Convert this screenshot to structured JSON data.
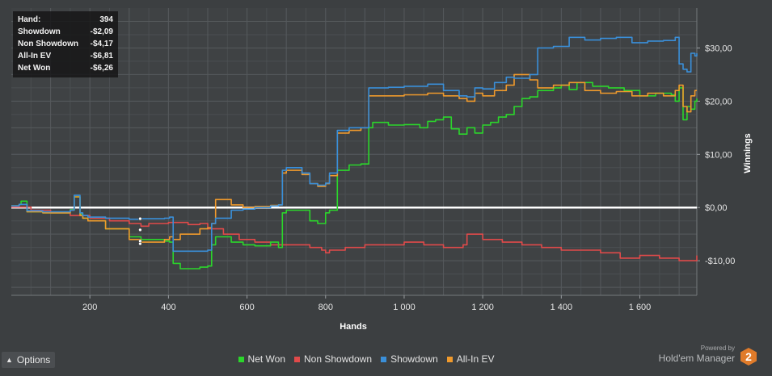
{
  "info": {
    "rows": [
      {
        "label": "Hand:",
        "value": "394"
      },
      {
        "label": "Showdown",
        "value": "-$2,09"
      },
      {
        "label": "Non Showdown",
        "value": "-$4,17"
      },
      {
        "label": "All-In EV",
        "value": "-$6,81"
      },
      {
        "label": "Net Won",
        "value": "-$6,26"
      }
    ]
  },
  "options_label": "Options",
  "powered_by": "Powered by",
  "brand": "Hold'em Manager",
  "brand_logo_text": "2",
  "colors": {
    "background": "#3c3f41",
    "net_won": "#2bd62b",
    "non_showdown": "#e04a4a",
    "showdown": "#3a8fd9",
    "all_in_ev": "#f09a2c",
    "zero_line": "#ffffff",
    "logo": "#e07b2a"
  },
  "chart_data": {
    "type": "line",
    "xlabel": "Hands",
    "ylabel": "Winnings",
    "xlim": [
      0,
      1745
    ],
    "ylim": [
      -16.5,
      37.5
    ],
    "x_ticks": [
      200,
      400,
      600,
      800,
      1000,
      1200,
      1400,
      1600
    ],
    "x_tick_labels": [
      "200",
      "400",
      "600",
      "800",
      "1 000",
      "1 200",
      "1 400",
      "1 600"
    ],
    "y_ticks": [
      -10,
      0,
      10,
      20,
      30
    ],
    "y_tick_labels": [
      "-$10,00",
      "$0,00",
      "$10,00",
      "$20,00",
      "$30,00"
    ],
    "grid": true,
    "legend_position": "bottom",
    "series": [
      {
        "name": "Net Won",
        "color_key": "net_won",
        "x": [
          0,
          20,
          25,
          40,
          80,
          150,
          160,
          175,
          182,
          195,
          240,
          300,
          330,
          390,
          403,
          412,
          430,
          480,
          500,
          510,
          520,
          560,
          590,
          620,
          660,
          680,
          690,
          700,
          760,
          780,
          800,
          810,
          830,
          860,
          890,
          910,
          920,
          960,
          1000,
          1040,
          1060,
          1080,
          1100,
          1120,
          1140,
          1160,
          1180,
          1200,
          1220,
          1240,
          1260,
          1280,
          1300,
          1320,
          1340,
          1380,
          1400,
          1420,
          1440,
          1480,
          1520,
          1560,
          1600,
          1640,
          1680,
          1690,
          1700,
          1710,
          1720,
          1730,
          1740,
          1745
        ],
        "y": [
          0.3,
          0.6,
          1.2,
          -0.8,
          -1.0,
          -0.4,
          2.0,
          -1.2,
          -2.0,
          -2.5,
          -4.0,
          -5.5,
          -6.0,
          -6.3,
          -6.5,
          -10.5,
          -11.5,
          -11.2,
          -11.0,
          -7.0,
          -5.5,
          -6.5,
          -7.0,
          -7.2,
          -6.5,
          -7.5,
          -1.0,
          -0.5,
          -2.5,
          -3.0,
          -1.0,
          -0.5,
          7.0,
          8.0,
          8.2,
          15.0,
          16.0,
          15.5,
          15.6,
          15.0,
          16.2,
          16.5,
          17.0,
          14.8,
          13.8,
          15.0,
          14.0,
          15.5,
          16.0,
          17.0,
          17.5,
          19.0,
          20.5,
          20.8,
          22.0,
          22.5,
          23.0,
          22.2,
          23.5,
          22.8,
          22.5,
          22.0,
          21.0,
          21.5,
          21.2,
          20.0,
          22.5,
          16.5,
          19.0,
          18.5,
          20.0,
          20.5
        ]
      },
      {
        "name": "Non Showdown",
        "color_key": "non_showdown",
        "x": [
          0,
          50,
          100,
          150,
          200,
          250,
          300,
          330,
          350,
          400,
          450,
          480,
          500,
          540,
          580,
          620,
          660,
          700,
          760,
          790,
          800,
          810,
          850,
          900,
          950,
          1000,
          1050,
          1100,
          1150,
          1160,
          1200,
          1250,
          1300,
          1350,
          1400,
          1450,
          1500,
          1550,
          1600,
          1650,
          1700,
          1745
        ],
        "y": [
          0.1,
          -0.5,
          -1.0,
          -1.5,
          -2.0,
          -2.5,
          -3.0,
          -3.5,
          -3.0,
          -2.8,
          -3.2,
          -3.0,
          -4.0,
          -5.0,
          -6.0,
          -6.5,
          -7.0,
          -7.0,
          -7.5,
          -8.0,
          -8.5,
          -8.0,
          -7.5,
          -7.0,
          -7.0,
          -6.5,
          -7.0,
          -7.5,
          -7.0,
          -5.0,
          -6.0,
          -6.5,
          -7.0,
          -7.5,
          -8.0,
          -8.0,
          -8.5,
          -9.5,
          -9.0,
          -9.5,
          -10.0,
          -9.0
        ]
      },
      {
        "name": "Showdown",
        "color_key": "showdown",
        "x": [
          0,
          20,
          40,
          80,
          150,
          160,
          175,
          182,
          195,
          240,
          300,
          330,
          390,
          403,
          412,
          500,
          510,
          520,
          560,
          590,
          620,
          660,
          680,
          690,
          700,
          740,
          760,
          780,
          800,
          810,
          830,
          860,
          890,
          910,
          960,
          1000,
          1060,
          1100,
          1140,
          1160,
          1180,
          1200,
          1230,
          1260,
          1280,
          1320,
          1340,
          1380,
          1420,
          1460,
          1500,
          1540,
          1580,
          1620,
          1660,
          1690,
          1700,
          1710,
          1720,
          1730,
          1740,
          1745
        ],
        "y": [
          0.3,
          0.6,
          -0.6,
          -0.8,
          -0.5,
          2.3,
          -1.0,
          -1.5,
          -1.8,
          -2.0,
          -2.2,
          -2.1,
          -2.0,
          -1.8,
          -8.2,
          -8.0,
          -3.0,
          -2.0,
          -0.5,
          -0.3,
          0,
          0.3,
          0.5,
          7.0,
          7.5,
          6.5,
          4.5,
          4.2,
          4.6,
          6.5,
          14.5,
          15.0,
          15.0,
          22.5,
          22.6,
          22.8,
          23.2,
          22.0,
          21.0,
          20.8,
          22.5,
          22.3,
          23.5,
          24.5,
          24.3,
          25.0,
          30.0,
          30.3,
          32.0,
          31.5,
          31.8,
          32.0,
          31.0,
          31.3,
          31.4,
          32.0,
          27.0,
          26.0,
          25.5,
          29.0,
          28.5,
          29.0
        ]
      },
      {
        "name": "All-In EV",
        "color_key": "all_in_ev",
        "x": [
          0,
          20,
          40,
          80,
          150,
          160,
          175,
          182,
          195,
          240,
          300,
          330,
          390,
          403,
          412,
          430,
          480,
          500,
          510,
          520,
          560,
          590,
          620,
          660,
          680,
          690,
          700,
          740,
          760,
          780,
          800,
          810,
          830,
          860,
          890,
          910,
          960,
          1000,
          1060,
          1100,
          1140,
          1160,
          1180,
          1200,
          1230,
          1260,
          1280,
          1320,
          1340,
          1380,
          1420,
          1460,
          1500,
          1540,
          1580,
          1620,
          1660,
          1690,
          1700,
          1710,
          1720,
          1730,
          1740,
          1745
        ],
        "y": [
          0.3,
          0.6,
          -0.8,
          -1.0,
          -0.5,
          2.0,
          -1.5,
          -2.0,
          -2.5,
          -4.0,
          -6.0,
          -6.5,
          -6.0,
          -5.5,
          -6.0,
          -5.0,
          -4.0,
          -3.8,
          -3.0,
          1.5,
          0.5,
          0.0,
          0.2,
          0.4,
          0.5,
          6.5,
          7.0,
          6.2,
          4.5,
          4.0,
          4.5,
          6.0,
          14.0,
          14.5,
          15.0,
          21.0,
          21.0,
          21.2,
          21.5,
          21.0,
          20.5,
          20.0,
          21.5,
          21.0,
          22.0,
          23.0,
          25.0,
          24.0,
          22.5,
          23.0,
          23.5,
          22.0,
          21.5,
          21.8,
          21.0,
          21.5,
          21.0,
          22.0,
          23.0,
          19.0,
          18.0,
          21.0,
          22.0,
          22.0
        ]
      }
    ],
    "tooltip_x": 328,
    "tooltip_points": [
      -2.1,
      -4.2,
      -6.3,
      -6.8
    ],
    "zero_line": true
  }
}
